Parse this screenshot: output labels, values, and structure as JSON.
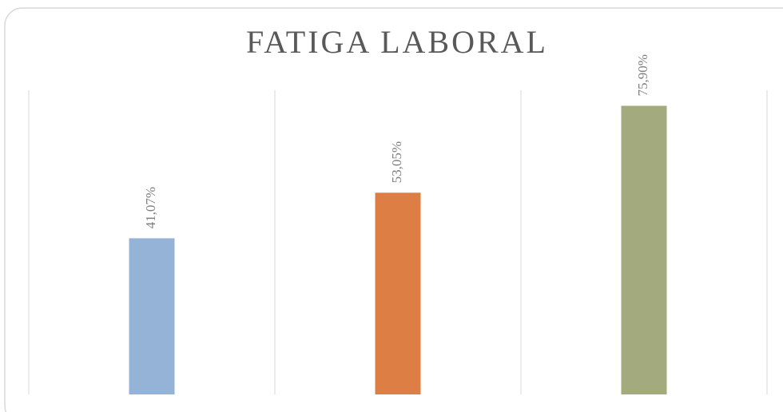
{
  "chart_data": {
    "type": "bar",
    "title": "FATIGA LABORAL",
    "categories": [
      null,
      null,
      null
    ],
    "values": [
      41.07,
      53.05,
      75.9
    ],
    "value_labels": [
      "41,07%",
      "53,05%",
      "75,90%"
    ],
    "colors": [
      "#95b3d7",
      "#dd7f45",
      "#a3aa7d"
    ],
    "ylim": [
      0,
      80
    ]
  }
}
